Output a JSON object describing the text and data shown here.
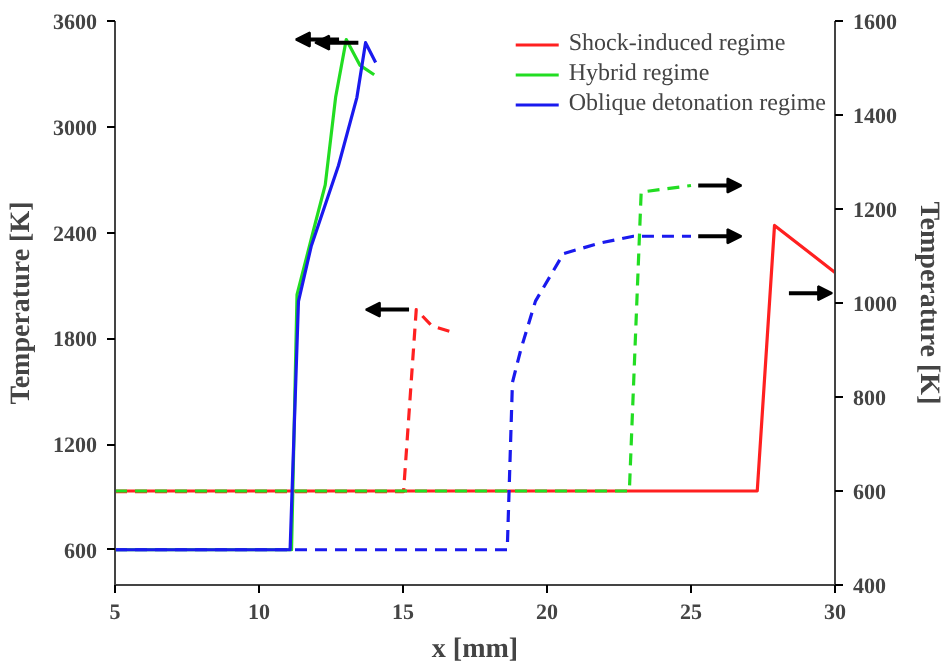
{
  "chart_data": {
    "type": "line",
    "xlabel": "x [mm]",
    "ylabel": "Temperature [K]",
    "y2label": "Temperature [K]",
    "xlim": [
      5,
      30
    ],
    "xticks": [
      5,
      10,
      15,
      20,
      25,
      30
    ],
    "ylim": [
      400,
      3600
    ],
    "yticks": [
      600,
      1200,
      1800,
      2400,
      3000,
      3600
    ],
    "y2lim": [
      400,
      1600
    ],
    "y2ticks": [
      400,
      600,
      800,
      1000,
      1200,
      1400,
      1600
    ],
    "grid": false,
    "legend": "top right",
    "marker": "none",
    "series": [
      {
        "name": "Shock-induced regime",
        "color": "#ff2020",
        "axis": "y2",
        "line_style": "solid",
        "x": [
          5,
          27.3,
          27.9,
          30
        ],
        "values": [
          600,
          600,
          1165,
          1065
        ]
      },
      {
        "name": "Hybrid regime",
        "color": "#22dd22",
        "line_style": "solid",
        "x": [
          5,
          11.13,
          11.32,
          11.93,
          12.3,
          12.66,
          13.03,
          13.5,
          14.0
        ],
        "values": [
          600,
          600,
          2047,
          2437,
          2670,
          3167,
          3495,
          3350,
          3295
        ]
      },
      {
        "name": "Oblique detonation regime",
        "color": "#1a1aee",
        "line_style": "solid",
        "x": [
          5,
          11.08,
          11.37,
          11.81,
          12.76,
          13.4,
          13.7,
          14.05
        ],
        "values": [
          600,
          600,
          2009,
          2320,
          2780,
          3167,
          3477,
          3365
        ]
      },
      {
        "color": "#ff2020",
        "line_style": "dashed",
        "x": [
          5,
          15.02,
          15.46,
          16.0,
          16.68
        ],
        "values": [
          930,
          930,
          1963,
          1870,
          1836
        ]
      },
      {
        "color": "#22dd22",
        "axis": "y2",
        "line_style": "dashed",
        "x": [
          5,
          22.86,
          23.27,
          25
        ],
        "values": [
          600,
          600,
          1236,
          1250
        ]
      },
      {
        "color": "#1a1aee",
        "axis": "y2",
        "line_style": "dashed",
        "x": [
          5,
          18.62,
          18.8,
          19.1,
          19.6,
          20.57,
          21.8,
          23,
          25
        ],
        "values": [
          475,
          475,
          831,
          903,
          1004,
          1105,
          1127,
          1142,
          1142
        ]
      }
    ]
  }
}
